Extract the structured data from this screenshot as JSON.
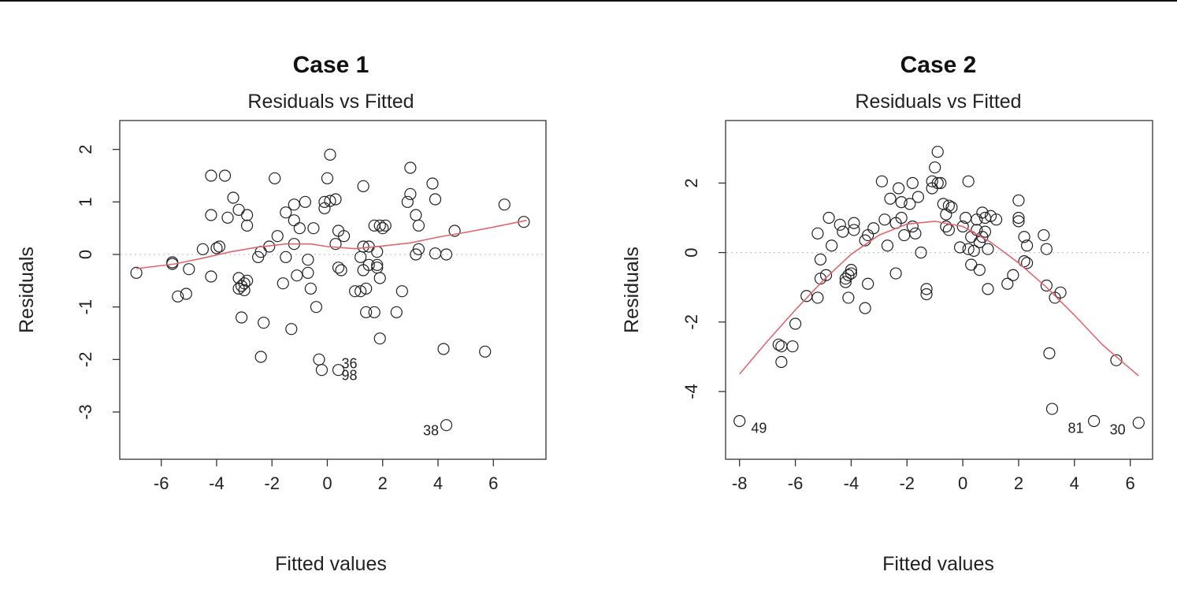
{
  "chart_data": [
    {
      "type": "scatter",
      "title": "Case 1",
      "subtitle": "Residuals vs Fitted",
      "xlabel": "Fitted values",
      "ylabel": "Residuals",
      "xlim": [
        -7.5,
        7.9
      ],
      "ylim": [
        -3.9,
        2.55
      ],
      "xticks": [
        -6,
        -4,
        -2,
        0,
        2,
        4,
        6
      ],
      "yticks": [
        -3,
        -2,
        -1,
        0,
        1,
        2
      ],
      "grid": false,
      "reference_line": 0,
      "colors": {
        "smooth": "#e06670",
        "points": "#222222"
      },
      "points": [
        [
          -6.9,
          -0.35
        ],
        [
          -5.6,
          -0.15
        ],
        [
          -5.6,
          -0.18
        ],
        [
          -5.4,
          -0.8
        ],
        [
          -5.1,
          -0.75
        ],
        [
          -5.0,
          -0.28
        ],
        [
          -4.5,
          0.1
        ],
        [
          -4.2,
          1.5
        ],
        [
          -4.2,
          0.75
        ],
        [
          -4.2,
          -0.42
        ],
        [
          -4.0,
          0.12
        ],
        [
          -3.9,
          0.15
        ],
        [
          -3.7,
          1.5
        ],
        [
          -3.6,
          0.7
        ],
        [
          -3.4,
          1.08
        ],
        [
          -3.2,
          0.85
        ],
        [
          -3.2,
          -0.45
        ],
        [
          -3.2,
          -0.65
        ],
        [
          -3.1,
          -0.6
        ],
        [
          -3.0,
          -0.68
        ],
        [
          -3.0,
          -0.55
        ],
        [
          -3.1,
          -1.2
        ],
        [
          -2.9,
          0.75
        ],
        [
          -2.9,
          0.55
        ],
        [
          -2.9,
          -0.5
        ],
        [
          -2.5,
          -0.05
        ],
        [
          -2.4,
          0.05
        ],
        [
          -2.3,
          -1.3
        ],
        [
          -2.4,
          -1.95
        ],
        [
          -2.1,
          0.15
        ],
        [
          -1.9,
          1.45
        ],
        [
          -1.8,
          0.35
        ],
        [
          -1.6,
          -0.55
        ],
        [
          -1.5,
          0.8
        ],
        [
          -1.5,
          -0.05
        ],
        [
          -1.3,
          -1.42
        ],
        [
          -1.2,
          0.65
        ],
        [
          -1.2,
          0.95
        ],
        [
          -1.2,
          0.2
        ],
        [
          -1.1,
          -0.4
        ],
        [
          -1.0,
          0.5
        ],
        [
          -0.8,
          1.0
        ],
        [
          -0.7,
          -0.1
        ],
        [
          -0.7,
          -0.35
        ],
        [
          -0.6,
          -0.65
        ],
        [
          -0.5,
          0.5
        ],
        [
          -0.4,
          -1.0
        ],
        [
          -0.3,
          -2.0
        ],
        [
          -0.2,
          -2.2
        ],
        [
          -0.1,
          1.0
        ],
        [
          -0.1,
          0.88
        ],
        [
          0.0,
          1.45
        ],
        [
          0.1,
          1.9
        ],
        [
          0.1,
          1.02
        ],
        [
          0.3,
          1.05
        ],
        [
          0.3,
          0.2
        ],
        [
          0.4,
          -0.25
        ],
        [
          0.4,
          0.45
        ],
        [
          0.5,
          -0.3
        ],
        [
          0.6,
          0.35
        ],
        [
          0.4,
          -2.2
        ],
        [
          1.0,
          -0.7
        ],
        [
          1.2,
          -0.05
        ],
        [
          1.2,
          -0.7
        ],
        [
          1.3,
          0.15
        ],
        [
          1.3,
          -0.3
        ],
        [
          1.3,
          1.3
        ],
        [
          1.4,
          -0.65
        ],
        [
          1.4,
          -1.1
        ],
        [
          1.5,
          0.15
        ],
        [
          1.5,
          -0.2
        ],
        [
          1.7,
          -1.1
        ],
        [
          1.7,
          0.55
        ],
        [
          1.8,
          -0.25
        ],
        [
          1.8,
          -0.2
        ],
        [
          1.8,
          0.05
        ],
        [
          1.9,
          0.55
        ],
        [
          1.9,
          -0.45
        ],
        [
          1.9,
          -1.6
        ],
        [
          2.0,
          0.5
        ],
        [
          2.1,
          0.55
        ],
        [
          2.5,
          -1.1
        ],
        [
          2.7,
          -0.7
        ],
        [
          2.9,
          1.0
        ],
        [
          3.0,
          1.15
        ],
        [
          3.0,
          1.65
        ],
        [
          3.2,
          0.0
        ],
        [
          3.2,
          0.75
        ],
        [
          3.3,
          0.55
        ],
        [
          3.3,
          0.1
        ],
        [
          3.8,
          1.35
        ],
        [
          3.9,
          1.05
        ],
        [
          3.9,
          0.02
        ],
        [
          4.2,
          -1.8
        ],
        [
          4.3,
          0.0
        ],
        [
          4.6,
          0.45
        ],
        [
          5.7,
          -1.85
        ],
        [
          6.4,
          0.95
        ],
        [
          7.1,
          0.62
        ],
        [
          4.3,
          -3.25
        ]
      ],
      "smooth": [
        [
          -6.9,
          -0.27
        ],
        [
          -5.5,
          -0.18
        ],
        [
          -4.5,
          -0.07
        ],
        [
          -3.5,
          0.05
        ],
        [
          -2.5,
          0.14
        ],
        [
          -1.5,
          0.2
        ],
        [
          -0.6,
          0.2
        ],
        [
          0.0,
          0.15
        ],
        [
          1.0,
          0.11
        ],
        [
          2.0,
          0.16
        ],
        [
          3.0,
          0.22
        ],
        [
          4.0,
          0.33
        ],
        [
          5.0,
          0.42
        ],
        [
          6.0,
          0.52
        ],
        [
          7.2,
          0.65
        ]
      ],
      "annotations": [
        {
          "text": "36",
          "x": 0.4,
          "y": -2.08,
          "anchor": "start"
        },
        {
          "text": "98",
          "x": 0.4,
          "y": -2.3,
          "anchor": "start"
        },
        {
          "text": "38",
          "x": 4.2,
          "y": -3.35,
          "anchor": "end"
        }
      ]
    },
    {
      "type": "scatter",
      "title": "Case 2",
      "subtitle": "Residuals vs Fitted",
      "xlabel": "Fitted values",
      "ylabel": "Residuals",
      "xlim": [
        -8.5,
        6.8
      ],
      "ylim": [
        -5.95,
        3.8
      ],
      "xticks": [
        -8,
        -6,
        -4,
        -2,
        0,
        2,
        4,
        6
      ],
      "yticks": [
        -4,
        -2,
        0,
        2
      ],
      "grid": false,
      "reference_line": 0,
      "colors": {
        "smooth": "#e06670",
        "points": "#222222"
      },
      "points": [
        [
          -8.0,
          -4.85
        ],
        [
          -6.6,
          -2.65
        ],
        [
          -6.5,
          -3.15
        ],
        [
          -6.5,
          -2.7
        ],
        [
          -6.1,
          -2.7
        ],
        [
          -6.0,
          -2.05
        ],
        [
          -5.6,
          -1.25
        ],
        [
          -5.2,
          -1.3
        ],
        [
          -5.2,
          0.55
        ],
        [
          -5.1,
          -0.2
        ],
        [
          -5.1,
          -0.75
        ],
        [
          -4.9,
          -0.65
        ],
        [
          -4.8,
          1.0
        ],
        [
          -4.7,
          0.2
        ],
        [
          -4.4,
          0.8
        ],
        [
          -4.3,
          0.6
        ],
        [
          -4.2,
          -0.85
        ],
        [
          -4.2,
          -0.75
        ],
        [
          -4.1,
          -0.65
        ],
        [
          -4.1,
          -1.3
        ],
        [
          -4.0,
          -0.6
        ],
        [
          -4.0,
          -0.5
        ],
        [
          -3.9,
          0.85
        ],
        [
          -3.9,
          0.65
        ],
        [
          -3.5,
          -1.6
        ],
        [
          -3.5,
          0.35
        ],
        [
          -3.4,
          0.5
        ],
        [
          -3.4,
          -0.9
        ],
        [
          -3.2,
          0.7
        ],
        [
          -2.9,
          2.05
        ],
        [
          -2.8,
          0.95
        ],
        [
          -2.7,
          0.2
        ],
        [
          -2.6,
          1.55
        ],
        [
          -2.4,
          0.85
        ],
        [
          -2.4,
          -0.6
        ],
        [
          -2.3,
          1.85
        ],
        [
          -2.2,
          1.0
        ],
        [
          -2.2,
          1.45
        ],
        [
          -2.1,
          0.5
        ],
        [
          -1.9,
          1.4
        ],
        [
          -1.8,
          2.0
        ],
        [
          -1.8,
          0.75
        ],
        [
          -1.7,
          0.55
        ],
        [
          -1.6,
          1.6
        ],
        [
          -1.5,
          0.0
        ],
        [
          -1.3,
          -1.05
        ],
        [
          -1.3,
          -1.2
        ],
        [
          -1.1,
          2.05
        ],
        [
          -1.1,
          1.85
        ],
        [
          -1.0,
          2.45
        ],
        [
          -0.9,
          2.9
        ],
        [
          -0.9,
          2.0
        ],
        [
          -0.8,
          2.0
        ],
        [
          -0.7,
          1.4
        ],
        [
          -0.6,
          0.75
        ],
        [
          -0.6,
          1.1
        ],
        [
          -0.5,
          1.35
        ],
        [
          -0.5,
          0.65
        ],
        [
          -0.4,
          1.3
        ],
        [
          -0.1,
          0.15
        ],
        [
          0.0,
          0.75
        ],
        [
          0.1,
          1.0
        ],
        [
          0.2,
          0.1
        ],
        [
          0.2,
          2.05
        ],
        [
          0.3,
          -0.35
        ],
        [
          0.3,
          0.45
        ],
        [
          0.4,
          0.05
        ],
        [
          0.5,
          0.65
        ],
        [
          0.5,
          0.95
        ],
        [
          0.6,
          -0.5
        ],
        [
          0.6,
          0.3
        ],
        [
          0.7,
          1.15
        ],
        [
          0.7,
          0.45
        ],
        [
          0.8,
          0.6
        ],
        [
          0.8,
          1.0
        ],
        [
          0.9,
          -1.05
        ],
        [
          0.9,
          0.1
        ],
        [
          1.0,
          1.05
        ],
        [
          1.2,
          0.95
        ],
        [
          1.6,
          -0.9
        ],
        [
          1.8,
          -0.65
        ],
        [
          2.0,
          1.0
        ],
        [
          2.0,
          0.9
        ],
        [
          2.0,
          1.5
        ],
        [
          2.2,
          0.45
        ],
        [
          2.2,
          -0.25
        ],
        [
          2.3,
          0.2
        ],
        [
          2.3,
          -0.3
        ],
        [
          2.9,
          0.5
        ],
        [
          3.0,
          -0.95
        ],
        [
          3.0,
          0.1
        ],
        [
          3.1,
          -2.9
        ],
        [
          3.3,
          -1.3
        ],
        [
          3.5,
          -1.15
        ],
        [
          3.2,
          -4.5
        ],
        [
          4.7,
          -4.85
        ],
        [
          5.5,
          -3.1
        ],
        [
          6.3,
          -4.9
        ]
      ],
      "smooth": [
        [
          -8.0,
          -3.5
        ],
        [
          -7.0,
          -2.55
        ],
        [
          -6.0,
          -1.65
        ],
        [
          -5.0,
          -0.8
        ],
        [
          -4.0,
          -0.05
        ],
        [
          -3.0,
          0.5
        ],
        [
          -2.0,
          0.82
        ],
        [
          -1.0,
          0.9
        ],
        [
          0.0,
          0.75
        ],
        [
          1.0,
          0.3
        ],
        [
          2.0,
          -0.3
        ],
        [
          3.0,
          -1.0
        ],
        [
          4.0,
          -1.8
        ],
        [
          5.0,
          -2.65
        ],
        [
          6.3,
          -3.55
        ]
      ],
      "annotations": [
        {
          "text": "49",
          "x": -7.7,
          "y": -5.05,
          "anchor": "start"
        },
        {
          "text": "81",
          "x": 4.5,
          "y": -5.05,
          "anchor": "end"
        },
        {
          "text": "30",
          "x": 6.0,
          "y": -5.1,
          "anchor": "end"
        }
      ]
    }
  ]
}
